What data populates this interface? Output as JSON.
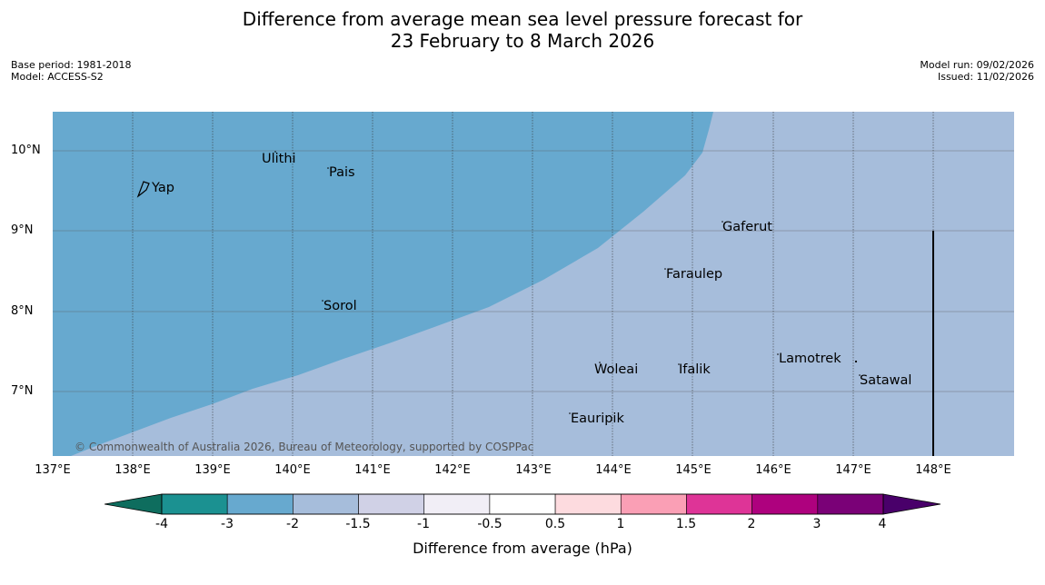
{
  "title": {
    "line1": "Difference from average mean sea level pressure forecast for",
    "line2": "23 February to 8 March 2026"
  },
  "meta": {
    "base_period": "Base period: 1981-2018",
    "model": "Model: ACCESS-S2",
    "model_run": "Model run: 09/02/2026",
    "issued": "Issued: 11/02/2026"
  },
  "map": {
    "lat_labels": [
      "10°N",
      "9°N",
      "8°N",
      "7°N"
    ],
    "lon_labels": [
      "137°E",
      "138°E",
      "139°E",
      "140°E",
      "141°E",
      "142°E",
      "143°E",
      "144°E",
      "145°E",
      "146°E",
      "147°E",
      "148°E"
    ],
    "places": [
      "Ulithi",
      "Pais",
      "Yap",
      "Gaferut",
      "Faraulep",
      "Sorol",
      "Lamotrek",
      "Woleai",
      "Ifalik",
      "Satawal",
      "Eauripik"
    ],
    "copyright": "© Commonwealth of Australia 2026, Bureau of Meteorology, supported by COSPPac",
    "colors": {
      "dark_region": "#67a9cf",
      "light_region": "#a6bddb"
    }
  },
  "colorbar": {
    "ticks": [
      "-4",
      "-3",
      "-2",
      "-1.5",
      "-1",
      "-0.5",
      "0.5",
      "1",
      "1.5",
      "2",
      "3",
      "4"
    ],
    "colors": [
      "#1b9191",
      "#67a9cf",
      "#a6bddb",
      "#d0d1e6",
      "#f1eef6",
      "#ffffff",
      "#fddbdf",
      "#fa9fb5",
      "#de3497",
      "#ae017e",
      "#7a0177"
    ],
    "low_end": "#0e6d5e",
    "high_end": "#49006a",
    "label": "Difference from average (hPa)"
  }
}
